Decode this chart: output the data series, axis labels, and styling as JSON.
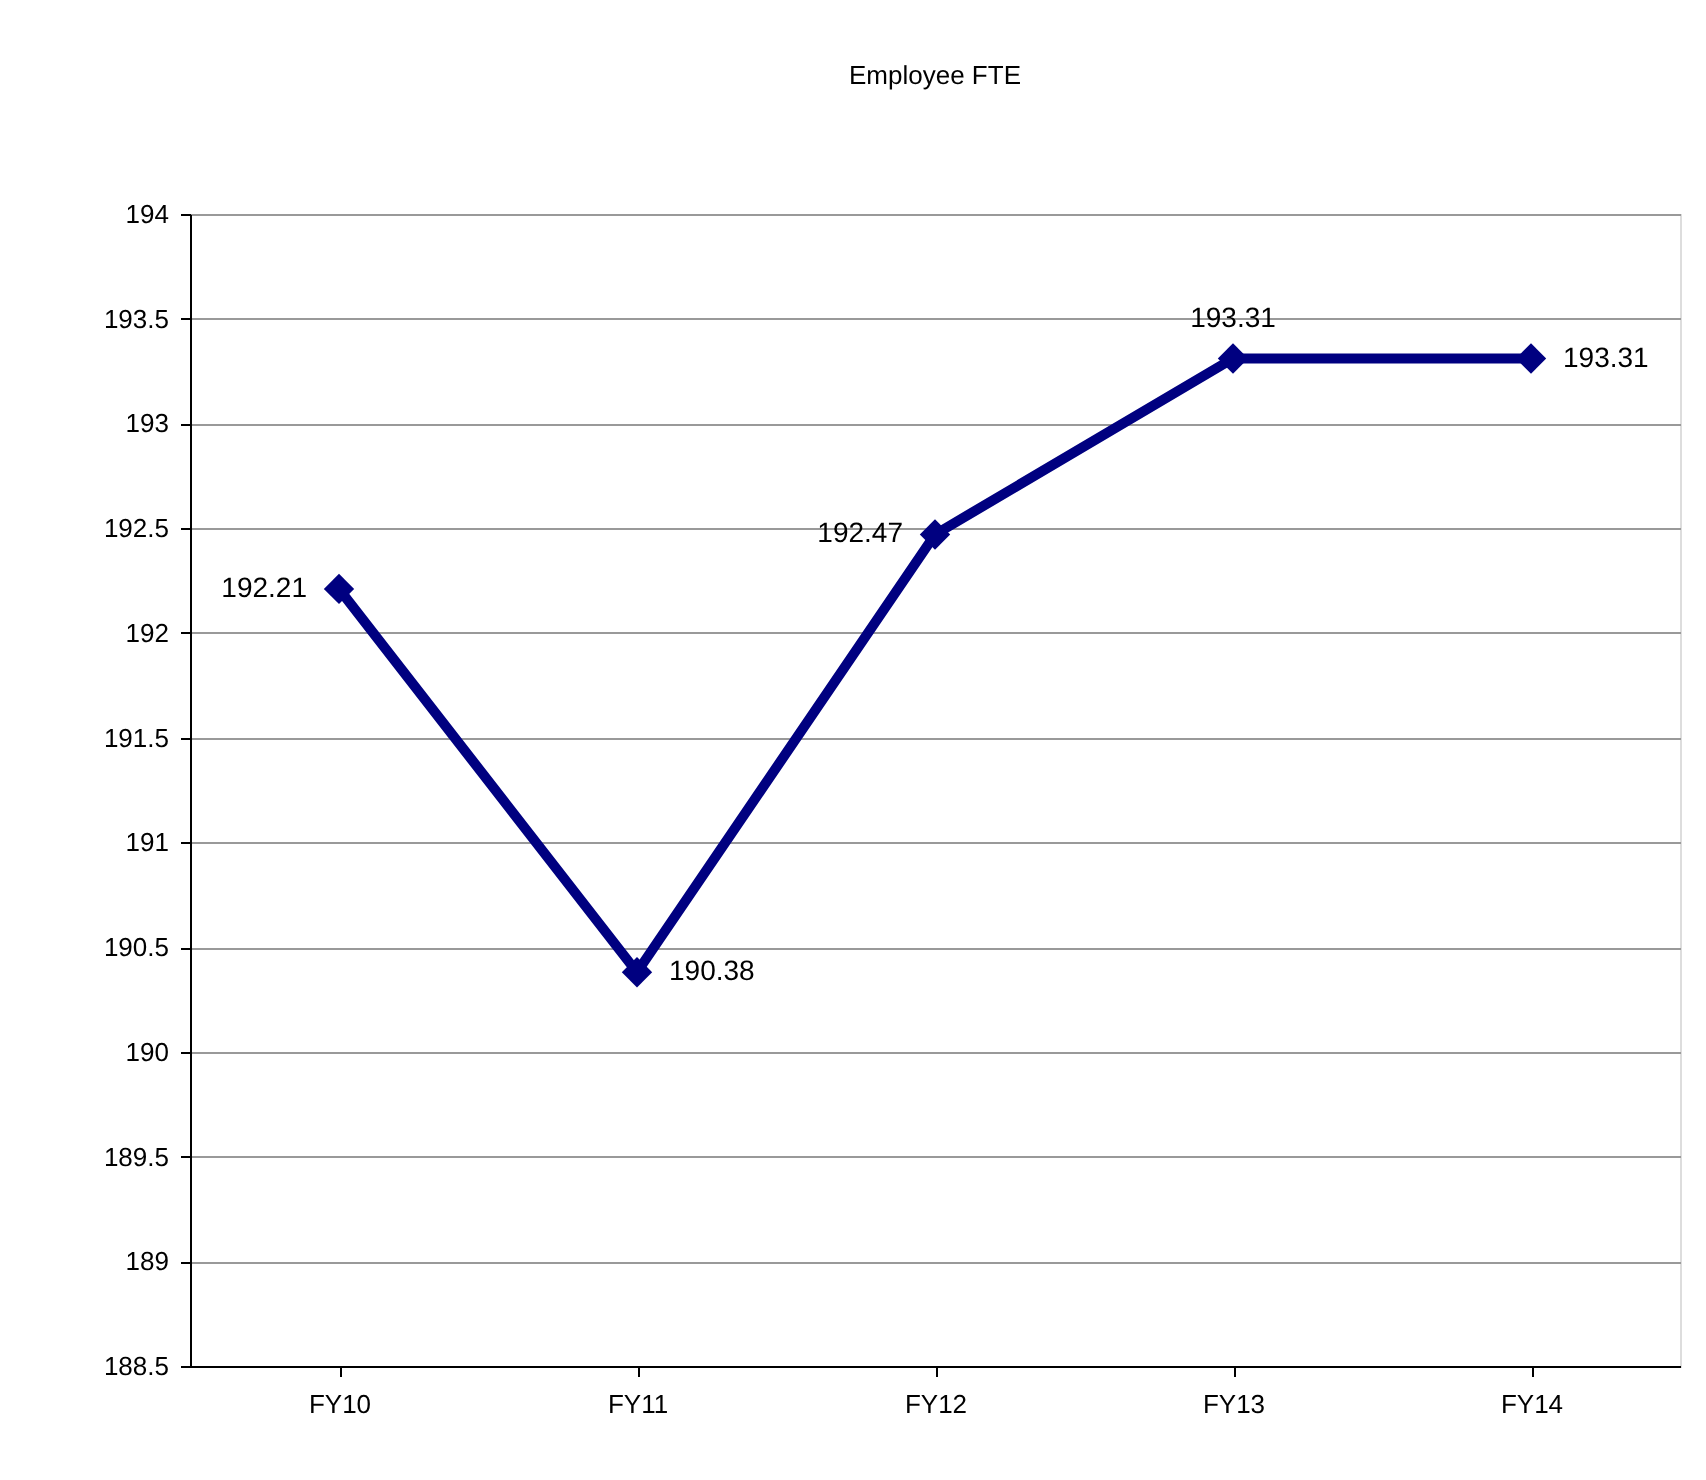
{
  "chart_data": {
    "type": "line",
    "title": "Employee FTE",
    "categories": [
      "FY10",
      "FY11",
      "FY12",
      "FY13",
      "FY14"
    ],
    "series": [
      {
        "color": "#000080",
        "values": [
          192.21,
          190.38,
          192.47,
          193.31,
          193.31
        ]
      }
    ],
    "ylim": [
      188.5,
      194
    ],
    "yticks": [
      188.5,
      189,
      189.5,
      190,
      190.5,
      191,
      191.5,
      192,
      192.5,
      193,
      193.5,
      194
    ],
    "grid": "y",
    "marker": "diamond",
    "line_style": "solid",
    "data_labels": true
  }
}
